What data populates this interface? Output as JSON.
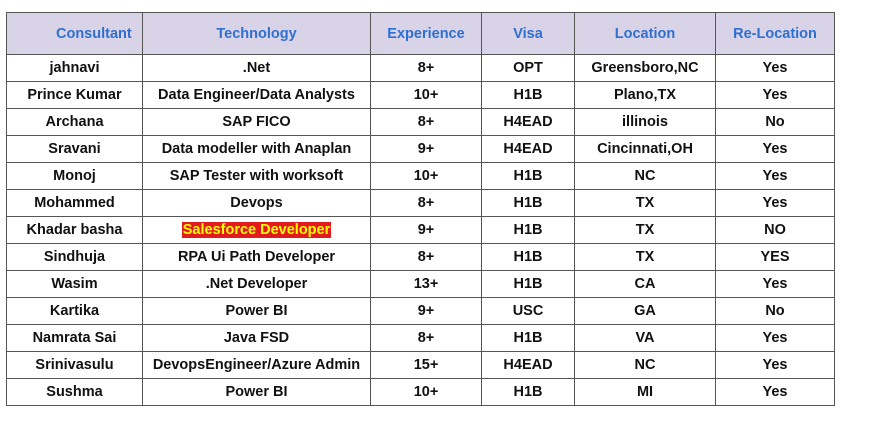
{
  "columns": [
    "Consultant",
    "Technology",
    "Experience",
    "Visa",
    "Location",
    "Re-Location"
  ],
  "rows": [
    [
      "jahnavi",
      ".Net",
      "8+",
      "OPT",
      "Greensboro,NC",
      "Yes"
    ],
    [
      "Prince Kumar",
      "Data Engineer/Data Analysts",
      "10+",
      "H1B",
      "Plano,TX",
      "Yes"
    ],
    [
      "Archana",
      "SAP FICO",
      "8+",
      "H4EAD",
      "illinois",
      "No"
    ],
    [
      "Sravani",
      "Data modeller with Anaplan",
      "9+",
      "H4EAD",
      "Cincinnati,OH",
      "Yes"
    ],
    [
      "Monoj",
      "SAP Tester with worksoft",
      "10+",
      "H1B",
      "NC",
      "Yes"
    ],
    [
      "Mohammed",
      "Devops",
      "8+",
      "H1B",
      "TX",
      "Yes"
    ],
    [
      "Khadar basha",
      "Salesforce Developer",
      "9+",
      "H1B",
      "TX",
      "NO"
    ],
    [
      "Sindhuja",
      "RPA Ui Path Developer",
      "8+",
      "H1B",
      "TX",
      "YES"
    ],
    [
      "Wasim",
      ".Net Developer",
      "13+",
      "H1B",
      "CA",
      "Yes"
    ],
    [
      "Kartika",
      "Power BI",
      "9+",
      "USC",
      "GA",
      "No"
    ],
    [
      "Namrata Sai",
      "Java FSD",
      "8+",
      "H1B",
      "VA",
      "Yes"
    ],
    [
      "Srinivasulu",
      "DevopsEngineer/Azure Admin",
      "15+",
      "H4EAD",
      "NC",
      "Yes"
    ],
    [
      "Sushma",
      "Power BI",
      "10+",
      "H1B",
      "MI",
      "Yes"
    ]
  ],
  "highlight": {
    "row": 6,
    "col": 1,
    "background": "#e21c1c",
    "color": "#ffff00"
  },
  "colors": {
    "header_bg": "#d9d3e8",
    "header_text": "#2e6fd0",
    "border": "#555555"
  }
}
